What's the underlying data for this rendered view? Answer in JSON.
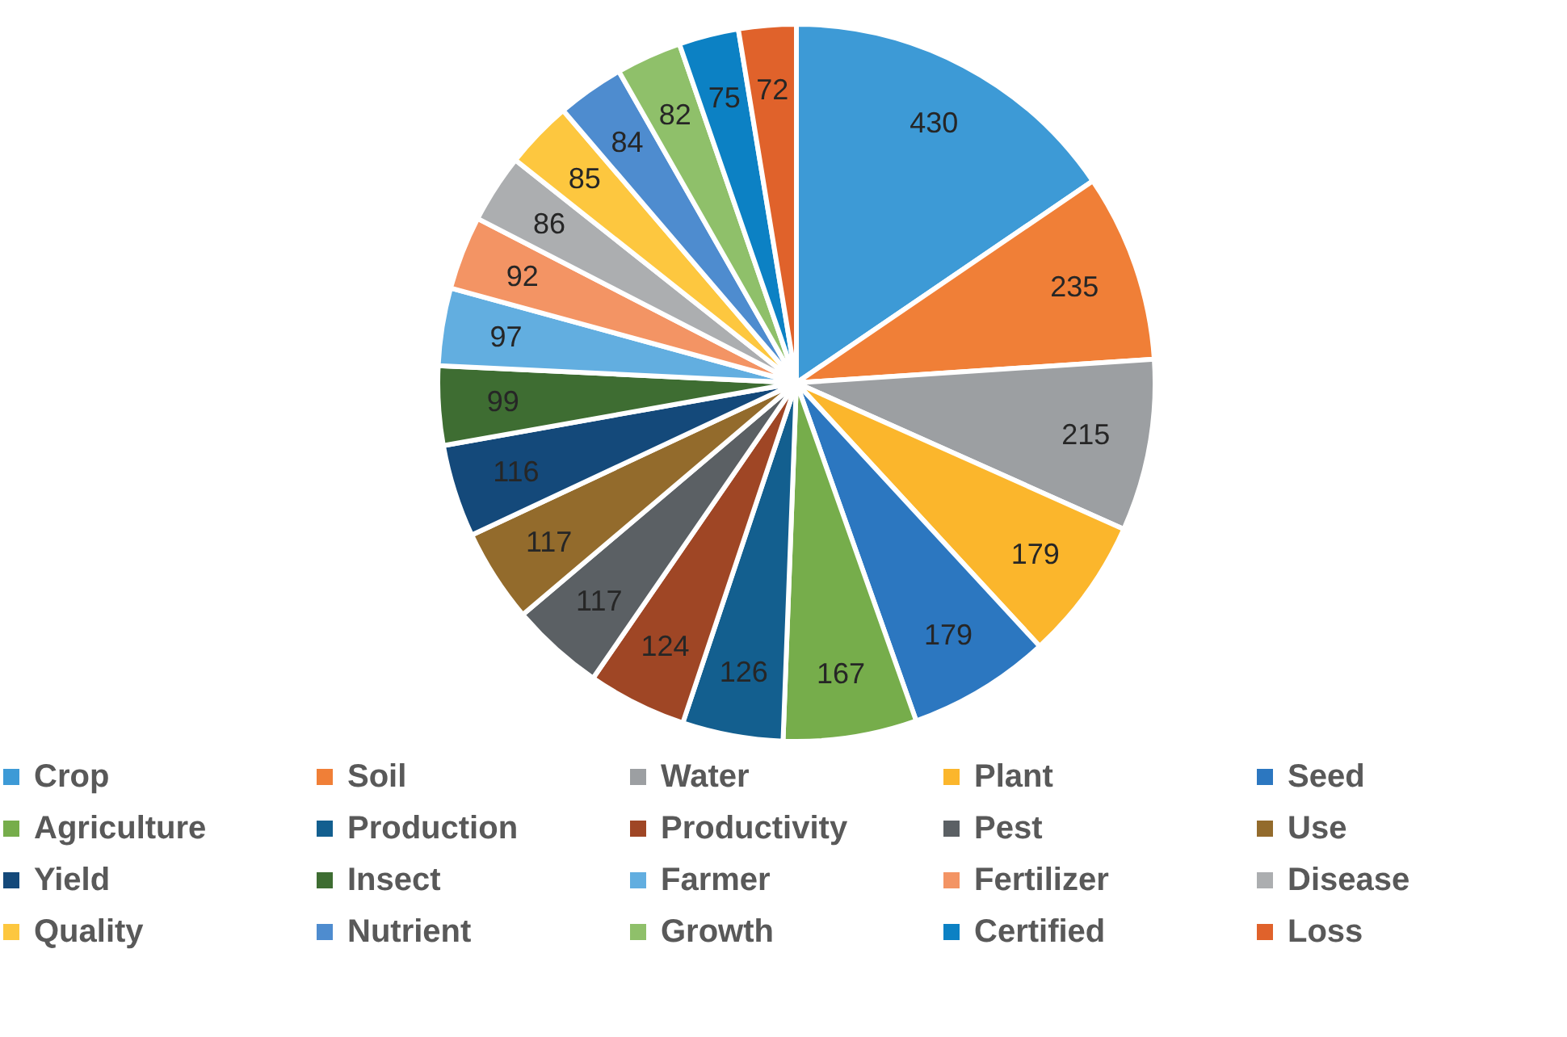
{
  "chart_data": {
    "type": "pie",
    "categories": [
      "Crop",
      "Soil",
      "Water",
      "Plant",
      "Seed",
      "Agriculture",
      "Production",
      "Productivity",
      "Pest",
      "Use",
      "Yield",
      "Insect",
      "Farmer",
      "Fertilizer",
      "Disease",
      "Quality",
      "Nutrient",
      "Growth",
      "Certified",
      "Loss"
    ],
    "values": [
      430,
      235,
      215,
      179,
      179,
      167,
      126,
      124,
      117,
      117,
      116,
      99,
      97,
      92,
      86,
      85,
      84,
      82,
      75,
      72
    ],
    "colors": [
      "#3d9ad6",
      "#f07f37",
      "#9c9fa2",
      "#fbb62c",
      "#2c77c0",
      "#76ad4b",
      "#135f8f",
      "#9f4625",
      "#5b6064",
      "#936b2c",
      "#14497a",
      "#3e6d32",
      "#62aee0",
      "#f39464",
      "#acaeb0",
      "#fdc73f",
      "#4e8ccf",
      "#8fc06a",
      "#0c81c4",
      "#e0622b"
    ],
    "data_labels": true,
    "legend": "bottom"
  }
}
